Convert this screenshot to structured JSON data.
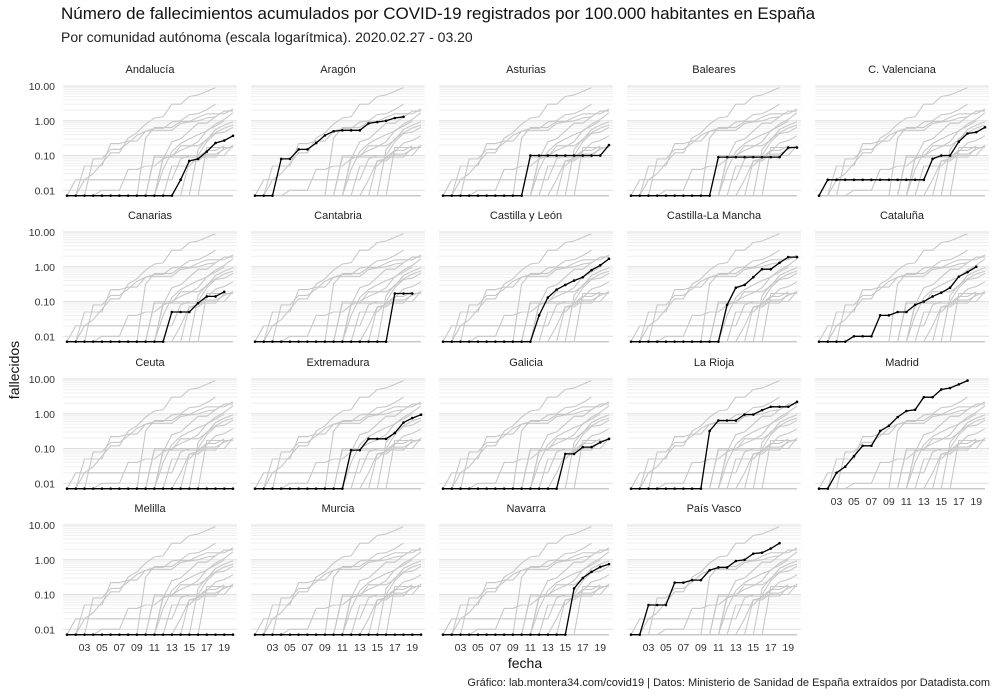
{
  "header": {
    "title": "Número de fallecimientos acumulados por COVID-19 registrados por 100.000 habitantes en España",
    "subtitle": "Por comunidad autónoma (escala logarítmica). 2020.02.27 - 03.20"
  },
  "axes": {
    "ylabel": "fallecidos",
    "xlabel": "fecha"
  },
  "caption": "Gráfico: lab.montera34.com/covid19 | Datos: Ministerio de Sanidad de España extraídos por Datadista.com",
  "chart_data": {
    "type": "line",
    "scale": "log",
    "x_dates": [
      "2020-03-01",
      "2020-03-02",
      "2020-03-03",
      "2020-03-04",
      "2020-03-05",
      "2020-03-06",
      "2020-03-07",
      "2020-03-08",
      "2020-03-09",
      "2020-03-10",
      "2020-03-11",
      "2020-03-12",
      "2020-03-13",
      "2020-03-14",
      "2020-03-15",
      "2020-03-16",
      "2020-03-17",
      "2020-03-18",
      "2020-03-19",
      "2020-03-20"
    ],
    "x_ticks": [
      "03",
      "05",
      "07",
      "09",
      "11",
      "13",
      "15",
      "17",
      "19"
    ],
    "y_ticks": [
      "0.01",
      "0.10",
      "1.00",
      "10.00"
    ],
    "ylim": [
      0.006,
      10
    ],
    "facets": 4,
    "highlight_color": "#000000",
    "background_color": "#c8c8c8",
    "grid": true,
    "series": [
      {
        "name": "Andalucía",
        "values": [
          0.007,
          0.007,
          0.007,
          0.007,
          0.007,
          0.007,
          0.007,
          0.007,
          0.007,
          0.007,
          0.007,
          0.007,
          0.007,
          0.02,
          0.07,
          0.08,
          0.13,
          0.23,
          0.27,
          0.37
        ]
      },
      {
        "name": "Aragón",
        "values": [
          0.007,
          0.007,
          0.007,
          0.08,
          0.08,
          0.15,
          0.15,
          0.23,
          0.38,
          0.5,
          0.53,
          0.53,
          0.53,
          0.84,
          0.92,
          1.0,
          1.2,
          1.3,
          null,
          null
        ]
      },
      {
        "name": "Asturias",
        "values": [
          0.007,
          0.007,
          0.007,
          0.007,
          0.007,
          0.007,
          0.007,
          0.007,
          0.007,
          0.007,
          0.1,
          0.1,
          0.1,
          0.1,
          0.1,
          0.1,
          0.1,
          0.1,
          0.1,
          0.2
        ]
      },
      {
        "name": "Baleares",
        "values": [
          0.007,
          0.007,
          0.007,
          0.007,
          0.007,
          0.007,
          0.007,
          0.007,
          0.007,
          0.007,
          0.09,
          0.09,
          0.09,
          0.09,
          0.09,
          0.09,
          0.09,
          0.09,
          0.17,
          0.17
        ]
      },
      {
        "name": "C. Valenciana",
        "values": [
          0.007,
          0.02,
          0.02,
          0.02,
          0.02,
          0.02,
          0.02,
          0.02,
          0.02,
          0.02,
          0.02,
          0.02,
          0.02,
          0.08,
          0.1,
          0.1,
          0.25,
          0.43,
          0.47,
          0.65
        ]
      },
      {
        "name": "Canarias",
        "values": [
          0.007,
          0.007,
          0.007,
          0.007,
          0.007,
          0.007,
          0.007,
          0.007,
          0.007,
          0.007,
          0.007,
          0.007,
          0.05,
          0.05,
          0.05,
          0.09,
          0.14,
          0.14,
          0.19,
          null
        ]
      },
      {
        "name": "Cantabria",
        "values": [
          0.007,
          0.007,
          0.007,
          0.007,
          0.007,
          0.007,
          0.007,
          0.007,
          0.007,
          0.007,
          0.007,
          0.007,
          0.007,
          0.007,
          0.007,
          0.007,
          0.17,
          0.17,
          0.17,
          null
        ]
      },
      {
        "name": "Castilla y León",
        "values": [
          0.007,
          0.007,
          0.007,
          0.007,
          0.007,
          0.007,
          0.007,
          0.007,
          0.007,
          0.007,
          0.007,
          0.04,
          0.13,
          0.22,
          0.3,
          0.4,
          0.5,
          0.8,
          1.1,
          1.7
        ]
      },
      {
        "name": "Castilla-La Mancha",
        "values": [
          0.007,
          0.007,
          0.007,
          0.007,
          0.007,
          0.007,
          0.007,
          0.007,
          0.007,
          0.007,
          0.007,
          0.08,
          0.25,
          0.3,
          0.5,
          0.85,
          0.85,
          1.3,
          1.9,
          1.9
        ]
      },
      {
        "name": "Cataluña",
        "values": [
          0.007,
          0.007,
          0.007,
          0.007,
          0.01,
          0.01,
          0.01,
          0.04,
          0.04,
          0.05,
          0.05,
          0.08,
          0.1,
          0.14,
          0.18,
          0.25,
          0.52,
          0.7,
          1.0,
          null
        ]
      },
      {
        "name": "Ceuta",
        "values": [
          0.007,
          0.007,
          0.007,
          0.007,
          0.007,
          0.007,
          0.007,
          0.007,
          0.007,
          0.007,
          0.007,
          0.007,
          0.007,
          0.007,
          0.007,
          0.007,
          0.007,
          0.007,
          0.007,
          0.007
        ]
      },
      {
        "name": "Extremadura",
        "values": [
          0.007,
          0.007,
          0.007,
          0.007,
          0.007,
          0.007,
          0.007,
          0.007,
          0.007,
          0.007,
          0.007,
          0.09,
          0.09,
          0.19,
          0.19,
          0.19,
          0.28,
          0.56,
          0.75,
          0.94
        ]
      },
      {
        "name": "Galicia",
        "values": [
          0.007,
          0.007,
          0.007,
          0.007,
          0.007,
          0.007,
          0.007,
          0.007,
          0.007,
          0.007,
          0.007,
          0.007,
          0.007,
          0.007,
          0.07,
          0.07,
          0.11,
          0.11,
          0.15,
          0.19
        ]
      },
      {
        "name": "La Rioja",
        "values": [
          0.007,
          0.007,
          0.007,
          0.007,
          0.007,
          0.007,
          0.007,
          0.007,
          0.007,
          0.32,
          0.64,
          0.64,
          0.64,
          0.95,
          0.95,
          1.27,
          1.59,
          1.59,
          1.59,
          2.2
        ]
      },
      {
        "name": "Madrid",
        "values": [
          0.007,
          0.007,
          0.02,
          0.03,
          0.06,
          0.12,
          0.12,
          0.32,
          0.45,
          0.8,
          1.2,
          1.3,
          3.0,
          3.0,
          5.0,
          5.5,
          7.0,
          9.0,
          null,
          null
        ]
      },
      {
        "name": "Melilla",
        "values": [
          0.007,
          0.007,
          0.007,
          0.007,
          0.007,
          0.007,
          0.007,
          0.007,
          0.007,
          0.007,
          0.007,
          0.007,
          0.007,
          0.007,
          0.007,
          0.007,
          0.007,
          0.007,
          0.007,
          0.007
        ]
      },
      {
        "name": "Murcia",
        "values": [
          0.007,
          0.007,
          0.007,
          0.007,
          0.007,
          0.007,
          0.007,
          0.007,
          0.007,
          0.007,
          0.007,
          0.007,
          0.007,
          0.007,
          0.007,
          0.007,
          0.007,
          0.007,
          0.007,
          0.007
        ]
      },
      {
        "name": "Navarra",
        "values": [
          0.007,
          0.007,
          0.007,
          0.007,
          0.007,
          0.007,
          0.007,
          0.007,
          0.007,
          0.007,
          0.007,
          0.007,
          0.007,
          0.007,
          0.007,
          0.15,
          0.3,
          0.45,
          0.62,
          0.75
        ]
      },
      {
        "name": "País Vasco",
        "values": [
          0.007,
          0.007,
          0.05,
          0.05,
          0.05,
          0.22,
          0.22,
          0.26,
          0.26,
          0.5,
          0.6,
          0.6,
          0.92,
          1.0,
          1.5,
          1.6,
          2.1,
          3.0,
          null,
          null
        ]
      }
    ]
  }
}
